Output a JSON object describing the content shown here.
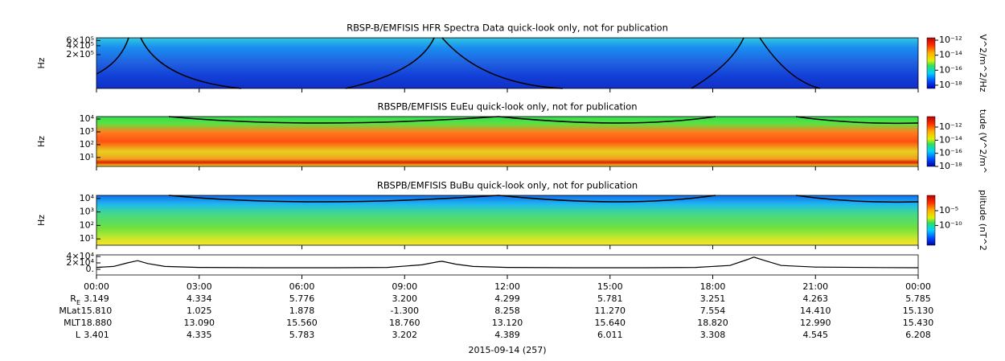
{
  "chart_data": [
    {
      "type": "spectrogram",
      "title": "RBSP-B/EMFISIS  HFR Spectra Data quick-look only, not for publication",
      "ylabel": "Hz",
      "log_y": true,
      "xlim": [
        0,
        24
      ],
      "ylim": [
        14500,
        740000
      ],
      "yticks": [
        {
          "value": 200000,
          "label": "2×10⁵"
        },
        {
          "value": 400000,
          "label": "4×10⁵"
        },
        {
          "value": 600000,
          "label": "6×10⁵"
        }
      ],
      "colorbar_label": "V^2/m^2/Hz",
      "zlim": [
        3.7e-19,
        2.1e-12
      ],
      "zticks": [
        {
          "value": 1e-12,
          "label": "10⁻¹²"
        },
        {
          "value": 1e-14,
          "label": "10⁻¹⁴"
        },
        {
          "value": 1e-16,
          "label": "10⁻¹⁶"
        },
        {
          "value": 1e-18,
          "label": "10⁻¹⁸"
        }
      ]
    },
    {
      "type": "spectrogram",
      "title": "RBSPB/EMFISIS  EuEu quick-look only, not for publication",
      "ylabel": "Hz",
      "log_y": true,
      "xlim": [
        0,
        24
      ],
      "ylim": [
        2,
        15500
      ],
      "yticks": [
        {
          "value": 10,
          "label": "10¹"
        },
        {
          "value": 100,
          "label": "10²"
        },
        {
          "value": 1000,
          "label": "10³"
        },
        {
          "value": 10000,
          "label": "10⁴"
        }
      ],
      "colorbar_label": "tude (V^2/m^",
      "zlim": [
        1e-18,
        3.9e-11
      ],
      "zticks": [
        {
          "value": 1e-12,
          "label": "10⁻¹²"
        },
        {
          "value": 1e-14,
          "label": "10⁻¹⁴"
        },
        {
          "value": 1e-16,
          "label": "10⁻¹⁶"
        },
        {
          "value": 1e-18,
          "label": "10⁻¹⁸"
        }
      ]
    },
    {
      "type": "spectrogram",
      "title": "RBSPB/EMFISIS  BuBu quick-look only, not for publication",
      "ylabel": "Hz",
      "log_y": true,
      "xlim": [
        0,
        24
      ],
      "ylim": [
        3.4,
        17000
      ],
      "yticks": [
        {
          "value": 10,
          "label": "10¹"
        },
        {
          "value": 100,
          "label": "10²"
        },
        {
          "value": 1000,
          "label": "10³"
        },
        {
          "value": 10000,
          "label": "10⁴"
        }
      ],
      "colorbar_label": "plitude (nT^2",
      "zlim": [
        2e-17,
        1.5
      ],
      "zticks": [
        {
          "value": 1e-05,
          "label": "10⁻⁵"
        },
        {
          "value": 1e-10,
          "label": "10⁻¹⁰"
        }
      ]
    },
    {
      "type": "line",
      "xlim": [
        0,
        24
      ],
      "ylim": [
        -17500,
        45000
      ],
      "yticks": [
        {
          "value": 0,
          "label": "0."
        },
        {
          "value": 20000,
          "label": "2×10⁴"
        },
        {
          "value": 40000,
          "label": "4×10⁴"
        }
      ],
      "xticks": [
        {
          "value": 0,
          "label": "00:00"
        },
        {
          "value": 3,
          "label": "03:00"
        },
        {
          "value": 6,
          "label": "06:00"
        },
        {
          "value": 9,
          "label": "09:00"
        },
        {
          "value": 12,
          "label": "12:00"
        },
        {
          "value": 15,
          "label": "15:00"
        },
        {
          "value": 18,
          "label": "18:00"
        },
        {
          "value": 21,
          "label": "21:00"
        },
        {
          "value": 24,
          "label": "00:00"
        }
      ],
      "series": [
        {
          "color": "#000000",
          "x": [
            0,
            0.5,
            0.9,
            1.2,
            1.5,
            2,
            3,
            5,
            7,
            8.5,
            9.5,
            10,
            10.1,
            10.5,
            11,
            12,
            14,
            16,
            17.5,
            18.5,
            19,
            19.2,
            19.5,
            20,
            21,
            23,
            24
          ],
          "values": [
            6000,
            9000,
            20000,
            27000,
            18000,
            9000,
            6000,
            5000,
            5000,
            6000,
            14000,
            24000,
            25000,
            16000,
            9000,
            6000,
            5000,
            5000,
            6000,
            12000,
            30000,
            38000,
            28000,
            12000,
            7000,
            5500,
            5000
          ]
        }
      ]
    }
  ],
  "ephemeris": [
    {
      "label": "R",
      "subscript": "E",
      "values": [
        "3.149",
        "4.334",
        "5.776",
        "3.200",
        "4.299",
        "5.781",
        "3.251",
        "4.263",
        "5.785"
      ]
    },
    {
      "label": "MLat",
      "values": [
        "15.810",
        "1.025",
        "1.878",
        "-1.300",
        "8.258",
        "11.270",
        "7.554",
        "14.410",
        "15.130"
      ]
    },
    {
      "label": "MLT",
      "values": [
        "18.880",
        "13.090",
        "15.560",
        "18.760",
        "13.120",
        "15.640",
        "18.820",
        "12.990",
        "15.430"
      ]
    },
    {
      "label": "L",
      "values": [
        "3.401",
        "4.335",
        "5.783",
        "3.202",
        "4.389",
        "6.011",
        "3.308",
        "4.545",
        "6.208"
      ]
    }
  ],
  "date": "2015-09-14 (257)"
}
